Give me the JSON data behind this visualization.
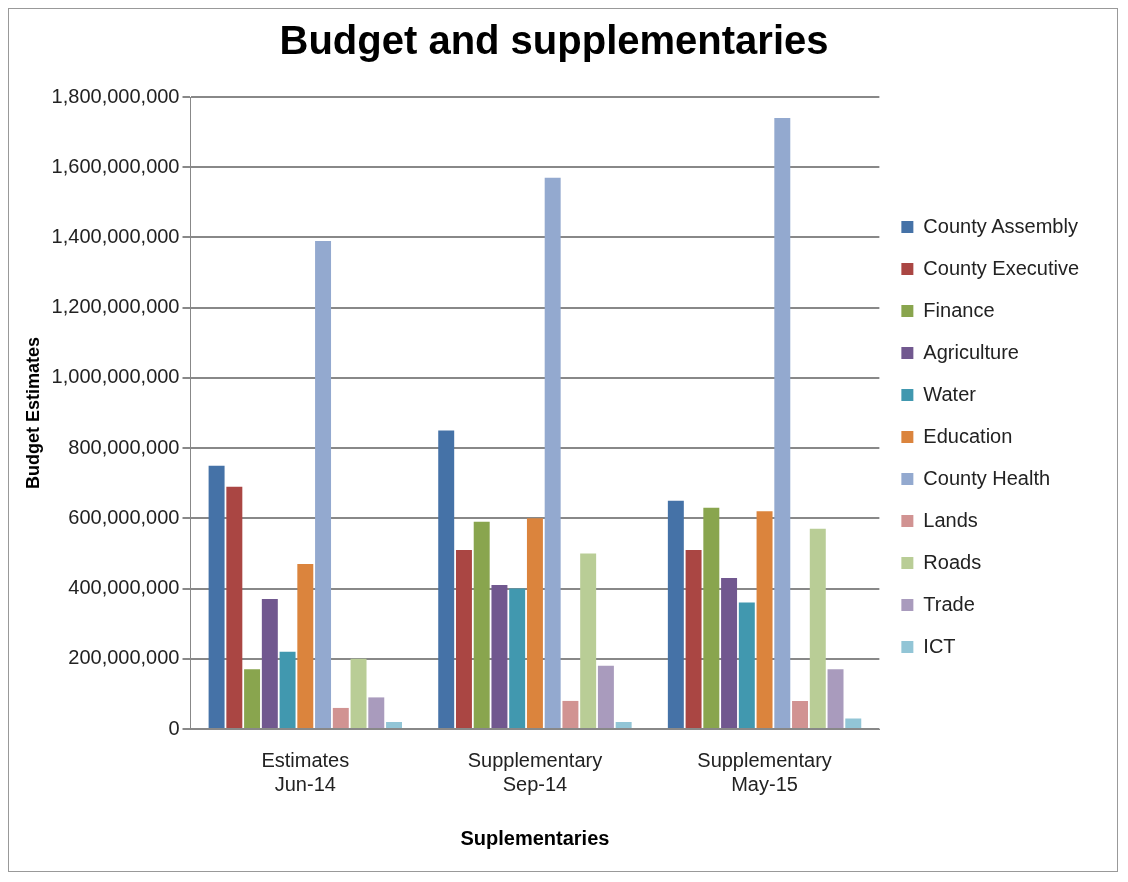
{
  "chart_data": {
    "type": "bar",
    "title": "Budget and supplementaries",
    "xlabel": "Suplementaries",
    "ylabel": "Budget Estimates",
    "categories": [
      "Estimates\nJun-14",
      "Supplementary\nSep-14",
      "Supplementary\nMay-15"
    ],
    "ylim": [
      0,
      1800000000
    ],
    "yticks": [
      0,
      {
        "value": 200000000,
        "label": "200,000,000"
      },
      {
        "value": 400000000,
        "label": "400,000,000"
      },
      {
        "value": 600000000,
        "label": "600,000,000"
      },
      {
        "value": 800000000,
        "label": "800,000,000"
      },
      {
        "value": 1000000000,
        "label": "1,000,000,000"
      },
      {
        "value": 1200000000,
        "label": "1,200,000,000"
      },
      {
        "value": 1400000000,
        "label": "1,400,000,000"
      },
      {
        "value": 1600000000,
        "label": "1,600,000,000"
      },
      {
        "value": 1800000000,
        "label": "1,800,000,000"
      }
    ],
    "grid": "y",
    "legend": "right",
    "series": [
      {
        "name": "County Assembly",
        "color": "#4572a7",
        "values": [
          750000000,
          850000000,
          650000000
        ]
      },
      {
        "name": "County Executive",
        "color": "#aa4643",
        "values": [
          690000000,
          510000000,
          510000000
        ]
      },
      {
        "name": "Finance",
        "color": "#89a54e",
        "values": [
          170000000,
          590000000,
          630000000
        ]
      },
      {
        "name": "Agriculture",
        "color": "#71588f",
        "values": [
          370000000,
          410000000,
          430000000
        ]
      },
      {
        "name": "Water",
        "color": "#4198af",
        "values": [
          220000000,
          400000000,
          360000000
        ]
      },
      {
        "name": "Education",
        "color": "#db843d",
        "values": [
          470000000,
          600000000,
          620000000
        ]
      },
      {
        "name": "County Health",
        "color": "#93a9cf",
        "values": [
          1390000000,
          1570000000,
          1740000000
        ]
      },
      {
        "name": "Lands",
        "color": "#d19392",
        "values": [
          60000000,
          80000000,
          80000000
        ]
      },
      {
        "name": "Roads",
        "color": "#b9cd96",
        "values": [
          200000000,
          500000000,
          570000000
        ]
      },
      {
        "name": "Trade",
        "color": "#a99bbd",
        "values": [
          90000000,
          180000000,
          170000000
        ]
      },
      {
        "name": "ICT",
        "color": "#92c5d6",
        "values": [
          20000000,
          20000000,
          30000000
        ]
      }
    ]
  }
}
